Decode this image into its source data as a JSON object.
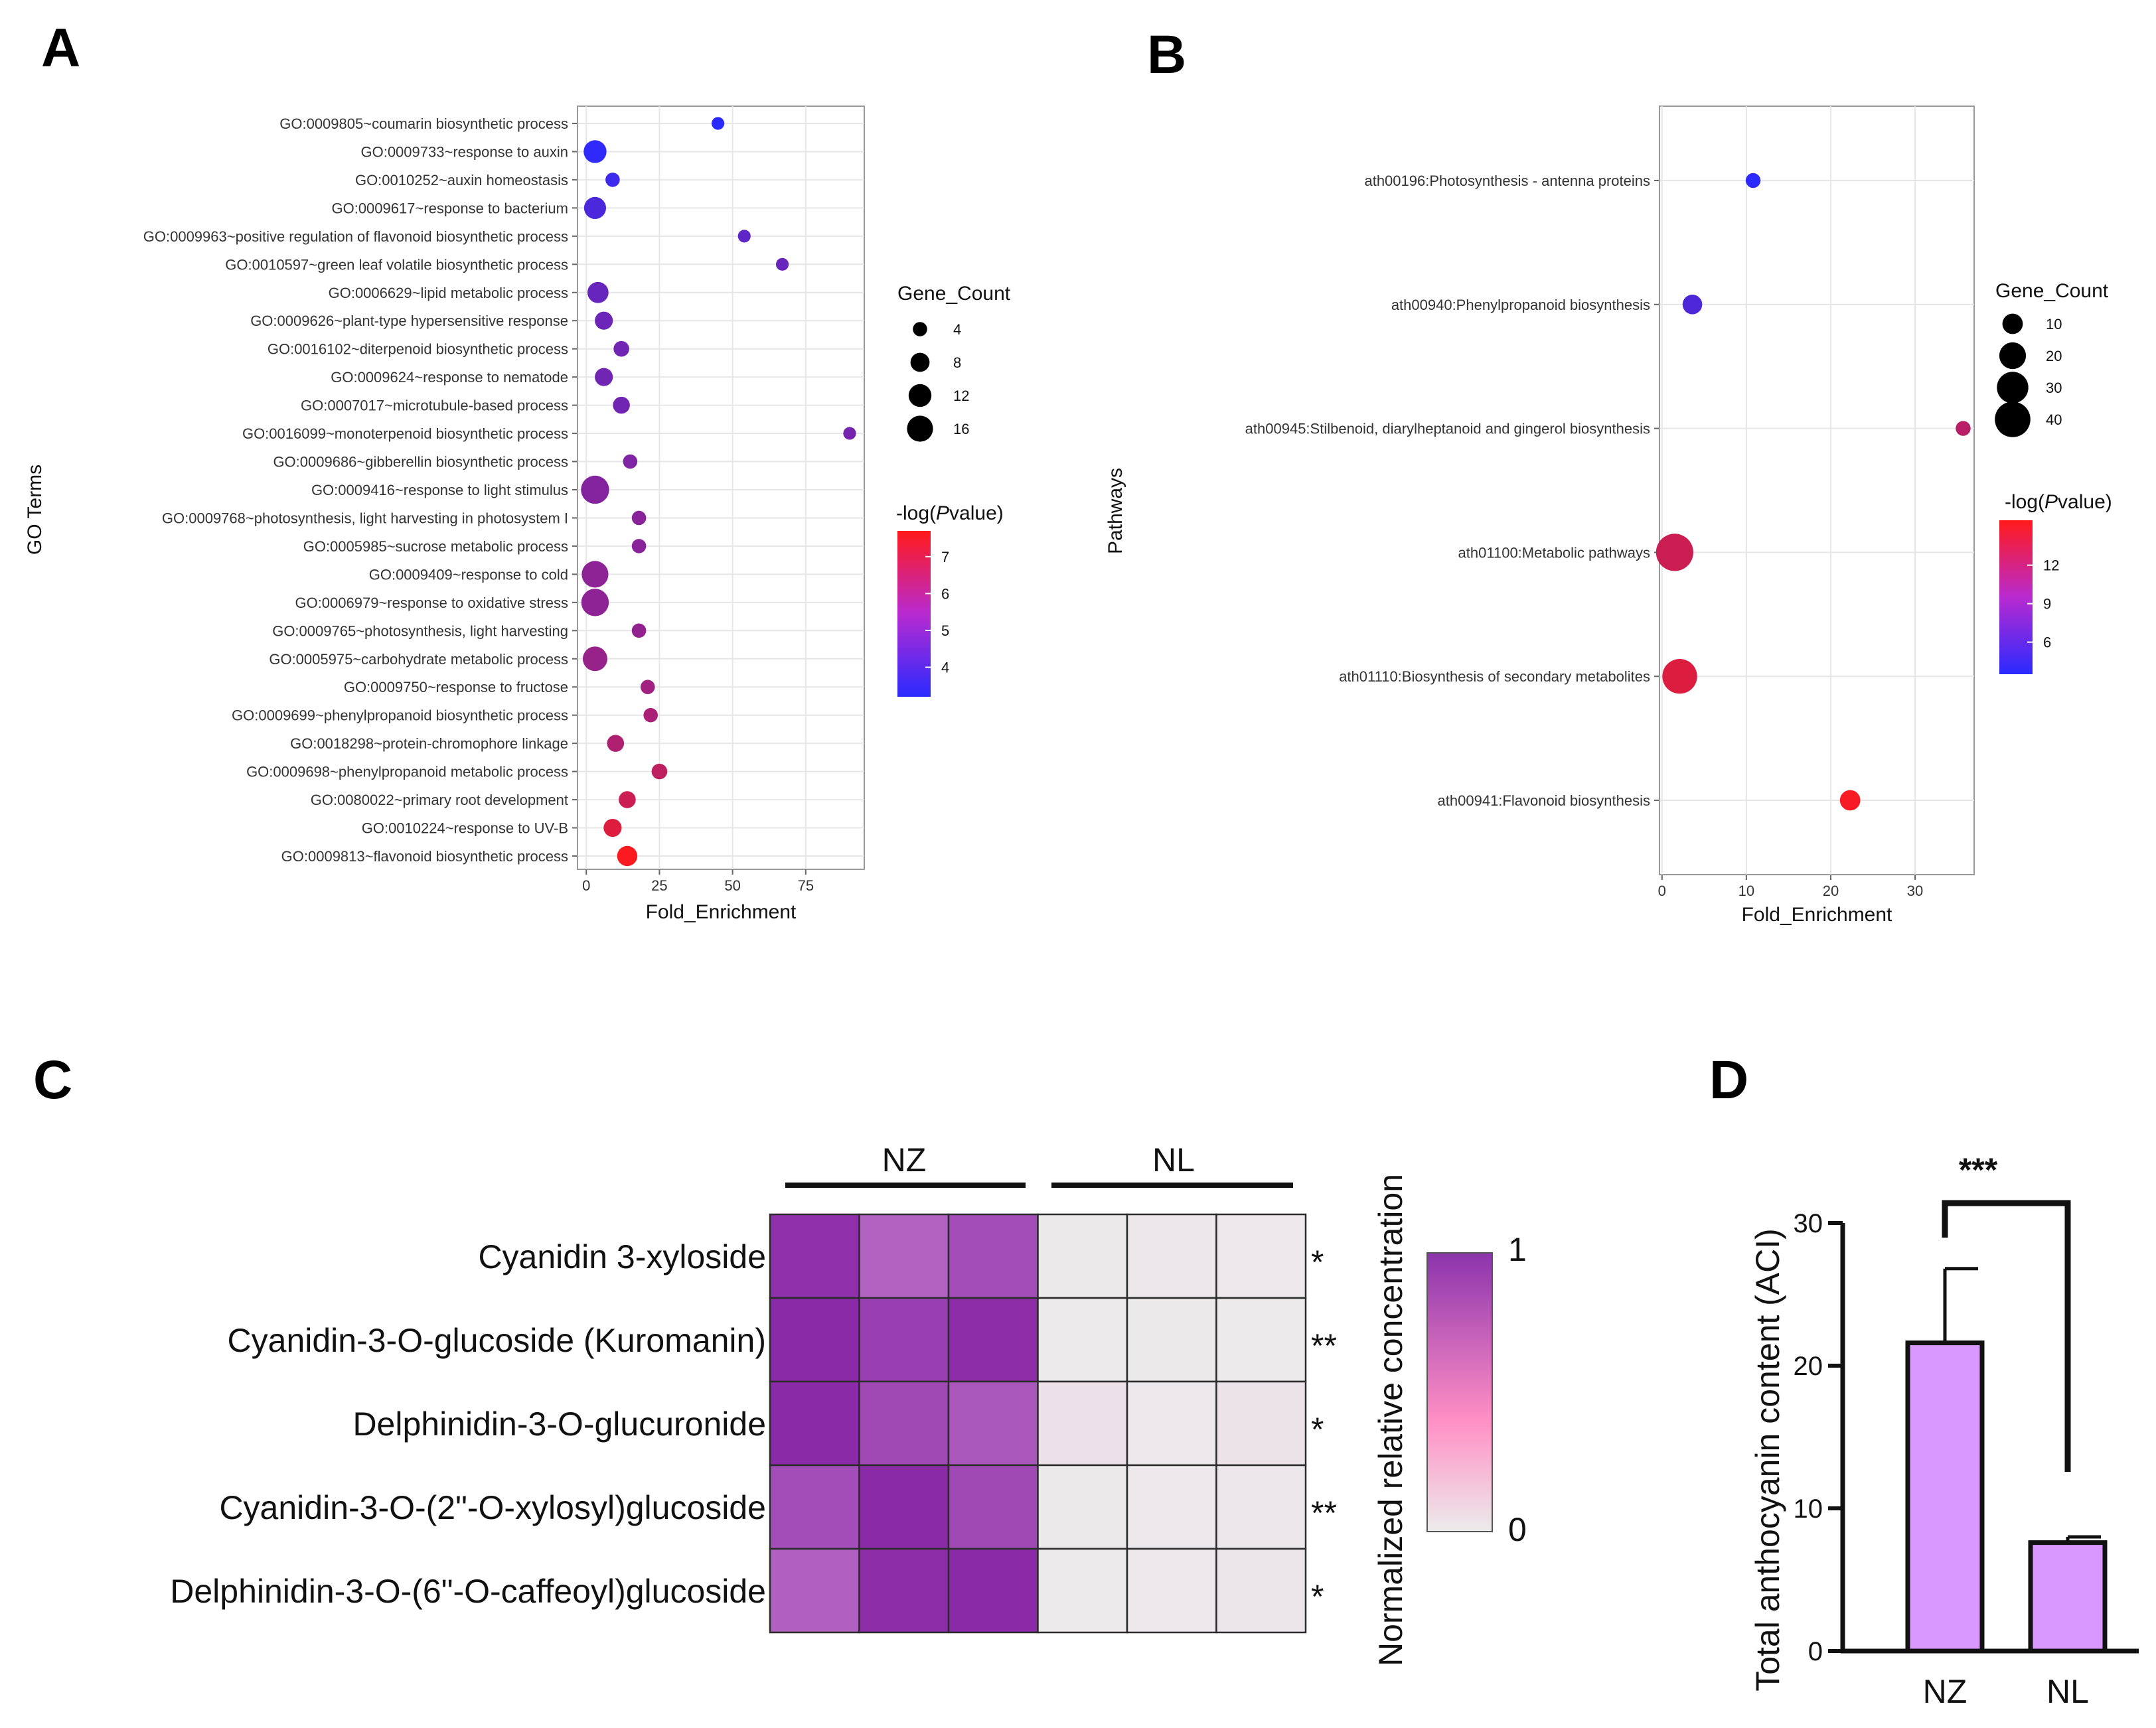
{
  "panels": {
    "A": "A",
    "B": "B",
    "C": "C",
    "D": "D"
  },
  "chart_data": [
    {
      "type": "scatter",
      "id": "A",
      "xlabel": "Fold_Enrichment",
      "ylabel": "GO Terms",
      "xlim": [
        -3,
        95
      ],
      "xticks": [
        0,
        25,
        50,
        75
      ],
      "grid": true,
      "categories": [
        "GO:0009805~coumarin biosynthetic process",
        "GO:0009733~response to auxin",
        "GO:0010252~auxin homeostasis",
        "GO:0009617~response to bacterium",
        "GO:0009963~positive regulation of flavonoid biosynthetic process",
        "GO:0010597~green leaf volatile biosynthetic process",
        "GO:0006629~lipid metabolic process",
        "GO:0009626~plant-type hypersensitive response",
        "GO:0016102~diterpenoid biosynthetic process",
        "GO:0009624~response to nematode",
        "GO:0007017~microtubule-based process",
        "GO:0016099~monoterpenoid biosynthetic process",
        "GO:0009686~gibberellin biosynthetic process",
        "GO:0009416~response to light stimulus",
        "GO:0009768~photosynthesis, light harvesting in photosystem I",
        "GO:0005985~sucrose metabolic process",
        "GO:0009409~response to cold",
        "GO:0006979~response to oxidative stress",
        "GO:0009765~photosynthesis, light harvesting",
        "GO:0005975~carbohydrate metabolic process",
        "GO:0009750~response to fructose",
        "GO:0009699~phenylpropanoid biosynthetic process",
        "GO:0018298~protein-chromophore linkage",
        "GO:0009698~phenylpropanoid metabolic process",
        "GO:0080022~primary root development",
        "GO:0010224~response to UV-B",
        "GO:0009813~flavonoid biosynthetic process"
      ],
      "points": [
        {
          "x": 45,
          "count": 3,
          "p": 3.2
        },
        {
          "x": 3,
          "count": 12,
          "p": 3.3
        },
        {
          "x": 9,
          "count": 4,
          "p": 3.6
        },
        {
          "x": 3,
          "count": 11,
          "p": 3.9
        },
        {
          "x": 54,
          "count": 3,
          "p": 4.3
        },
        {
          "x": 67,
          "count": 3,
          "p": 4.5
        },
        {
          "x": 4,
          "count": 10,
          "p": 4.5
        },
        {
          "x": 6,
          "count": 7,
          "p": 4.6
        },
        {
          "x": 12,
          "count": 5,
          "p": 4.7
        },
        {
          "x": 6,
          "count": 7,
          "p": 4.7
        },
        {
          "x": 12,
          "count": 6,
          "p": 4.7
        },
        {
          "x": 90,
          "count": 3,
          "p": 4.8
        },
        {
          "x": 15,
          "count": 4,
          "p": 5.0
        },
        {
          "x": 3,
          "count": 19,
          "p": 5.1
        },
        {
          "x": 18,
          "count": 4,
          "p": 5.2
        },
        {
          "x": 18,
          "count": 4,
          "p": 5.2
        },
        {
          "x": 3,
          "count": 17,
          "p": 5.3
        },
        {
          "x": 3,
          "count": 18,
          "p": 5.3
        },
        {
          "x": 18,
          "count": 4,
          "p": 5.4
        },
        {
          "x": 3,
          "count": 14,
          "p": 5.5
        },
        {
          "x": 21,
          "count": 4,
          "p": 5.7
        },
        {
          "x": 22,
          "count": 4,
          "p": 5.9
        },
        {
          "x": 10,
          "count": 6,
          "p": 6.0
        },
        {
          "x": 25,
          "count": 5,
          "p": 6.3
        },
        {
          "x": 14,
          "count": 6,
          "p": 6.6
        },
        {
          "x": 9,
          "count": 7,
          "p": 7.0
        },
        {
          "x": 14,
          "count": 9,
          "p": 7.6
        }
      ],
      "size_legend": {
        "title": "Gene_Count",
        "values": [
          4,
          8,
          12,
          16
        ]
      },
      "color_legend": {
        "title": "-log(",
        "title_italic": "P",
        "title_end": "value)",
        "ticks": [
          7,
          6,
          5,
          4
        ],
        "range": [
          3.2,
          7.7
        ],
        "colors": [
          "#ff1a1a",
          "#2a2aff"
        ]
      }
    },
    {
      "type": "scatter",
      "id": "B",
      "xlabel": "Fold_Enrichment",
      "ylabel": "Pathways",
      "xlim": [
        -0.3,
        37
      ],
      "xticks": [
        0,
        10,
        20,
        30
      ],
      "grid": true,
      "categories": [
        "ath00196:Photosynthesis - antenna proteins",
        "ath00940:Phenylpropanoid biosynthesis",
        "ath00945:Stilbenoid, diarylheptanoid and gingerol biosynthesis",
        "ath01100:Metabolic pathways",
        "ath01110:Biosynthesis of secondary metabolites",
        "ath00941:Flavonoid biosynthesis"
      ],
      "points": [
        {
          "x": 10.8,
          "count": 4,
          "p": 3.6
        },
        {
          "x": 3.6,
          "count": 9,
          "p": 5.5
        },
        {
          "x": 35.7,
          "count": 4,
          "p": 11.5
        },
        {
          "x": 1.5,
          "count": 45,
          "p": 12.5
        },
        {
          "x": 2.1,
          "count": 38,
          "p": 13.5
        },
        {
          "x": 22.3,
          "count": 10,
          "p": 15.0
        }
      ],
      "size_legend": {
        "title": "Gene_Count",
        "values": [
          10,
          20,
          30,
          40
        ]
      },
      "color_legend": {
        "title": "-log(",
        "title_italic": "P",
        "title_end": "value)",
        "ticks": [
          12,
          9,
          6
        ],
        "range": [
          3.5,
          15.5
        ],
        "colors": [
          "#ff1a1a",
          "#2a2aff"
        ]
      }
    },
    {
      "type": "heatmap",
      "id": "C",
      "groups": [
        "NZ",
        "NL"
      ],
      "rows": [
        "Cyanidin 3-xyloside",
        "Cyanidin-3-O-glucoside (Kuromanin)",
        "Delphinidin-3-O-glucuronide",
        "Cyanidin-3-O-(2\"-O-xylosyl)glucoside",
        "Delphinidin-3-O-(6\"-O-caffeoyl)glucoside"
      ],
      "values": [
        [
          0.95,
          0.6,
          0.75,
          0.03,
          0.05,
          0.04
        ],
        [
          1.0,
          0.85,
          0.98,
          0.02,
          0.03,
          0.02
        ],
        [
          1.0,
          0.78,
          0.68,
          0.12,
          0.04,
          0.1
        ],
        [
          0.75,
          1.0,
          0.78,
          0.03,
          0.04,
          0.05
        ],
        [
          0.62,
          0.98,
          1.0,
          0.02,
          0.04,
          0.07
        ]
      ],
      "significance": [
        "*",
        "**",
        "*",
        "**",
        "*"
      ],
      "colorbar": {
        "label": "Normalized relative concentration",
        "min_label": "0",
        "max_label": "1"
      }
    },
    {
      "type": "bar",
      "id": "D",
      "categories": [
        "NZ",
        "NL"
      ],
      "values": [
        21.6,
        7.6
      ],
      "errors": [
        5.2,
        0.4
      ],
      "ylabel": "Total anthocyanin content (ACI)",
      "ylim": [
        0,
        30
      ],
      "yticks": [
        0,
        10,
        20,
        30
      ],
      "significance": "***",
      "bar_color": "#d898ff"
    }
  ]
}
